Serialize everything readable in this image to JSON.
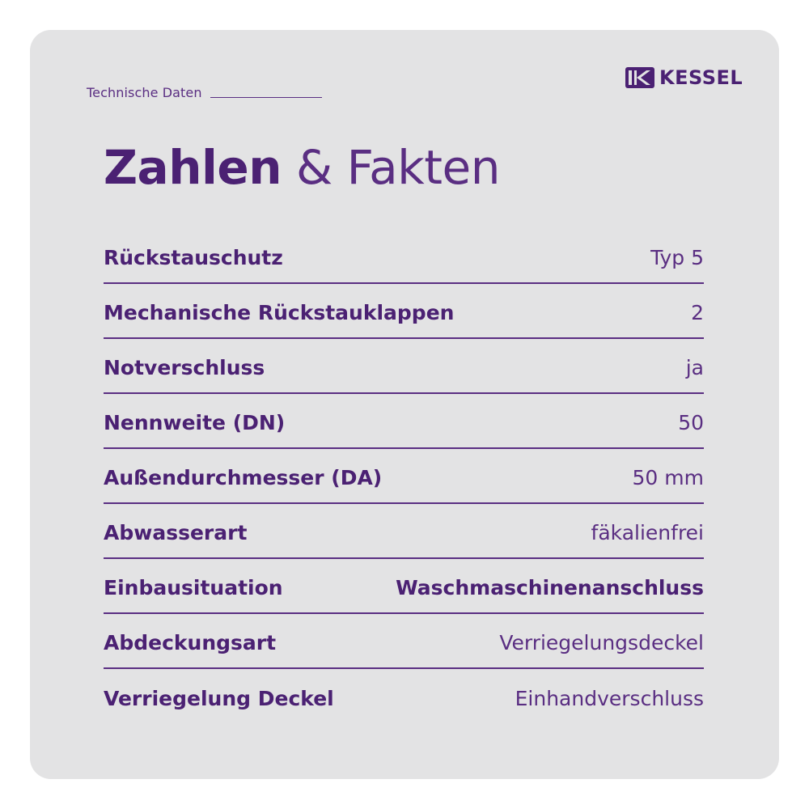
{
  "brand": {
    "name": "KESSEL",
    "accent_color": "#4b2173",
    "background_color": "#e3e3e4"
  },
  "section_label": "Technische Daten",
  "headline": {
    "bold": "Zahlen",
    "rest": "& Fakten"
  },
  "rows": [
    {
      "label": "Rückstauschutz",
      "value": "Typ 5"
    },
    {
      "label": "Mechanische Rückstauklappen",
      "value": "2"
    },
    {
      "label": "Notverschluss",
      "value": "ja"
    },
    {
      "label": "Nennweite (DN)",
      "value": "50"
    },
    {
      "label": "Außendurchmesser (DA)",
      "value": "50 mm"
    },
    {
      "label": "Abwasserart",
      "value": "fäkalienfrei"
    },
    {
      "label": "Einbausituation",
      "value": "Waschmaschinenanschluss"
    },
    {
      "label": "Abdeckungsart",
      "value": "Verriegelungsdeckel"
    },
    {
      "label": "Verriegelung Deckel",
      "value": "Einhandverschluss"
    }
  ]
}
